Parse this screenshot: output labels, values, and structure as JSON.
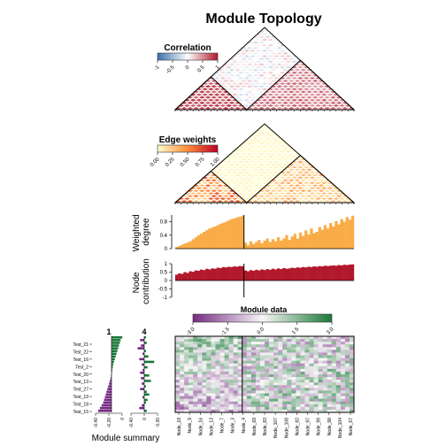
{
  "chart_data": {
    "type": "heatmap",
    "title": "Module Topology",
    "modules": [
      "1",
      "4"
    ],
    "correlation_panel": {
      "legend_title": "Correlation",
      "legend_ticks": [
        "-1",
        "-0.5",
        "0",
        "0.5",
        "1"
      ],
      "colors": [
        "#3b6fb0",
        "#ffffff",
        "#b2182b"
      ]
    },
    "edge_weights_panel": {
      "legend_title": "Edge weights",
      "legend_ticks": [
        "0.00",
        "0.25",
        "0.50",
        "0.75",
        "1.00"
      ],
      "colors": [
        "#ffffcc",
        "#fd8d3c",
        "#bd0026"
      ]
    },
    "weighted_degree": {
      "ylabel": "Weighted\ndegree",
      "ticks": [
        "0",
        "0.4",
        "0.8"
      ],
      "ylim": [
        0,
        1
      ],
      "color": "#f9ac47",
      "module1_values": [
        0.05,
        0.08,
        0.12,
        0.15,
        0.18,
        0.22,
        0.28,
        0.34,
        0.4,
        0.45,
        0.5,
        0.55,
        0.6,
        0.63,
        0.66,
        0.7,
        0.74,
        0.77,
        0.8,
        0.84,
        0.88,
        0.9,
        0.93,
        0.95,
        0.98
      ],
      "module4_values": [
        0.18,
        0.1,
        0.22,
        0.14,
        0.2,
        0.26,
        0.16,
        0.24,
        0.3,
        0.2,
        0.28,
        0.22,
        0.34,
        0.24,
        0.3,
        0.4,
        0.26,
        0.36,
        0.44,
        0.3,
        0.48,
        0.38,
        0.54,
        0.42,
        0.6,
        0.46,
        0.5,
        0.64,
        0.56,
        0.7,
        0.6,
        0.76,
        0.66,
        0.82,
        0.72,
        0.88,
        0.8,
        0.94,
        0.86,
        0.98
      ]
    },
    "node_contribution": {
      "ylabel": "Node\ncontribution",
      "ticks": [
        "-1",
        "-0.5",
        "0",
        "0.5",
        "1"
      ],
      "ylim": [
        -1,
        1
      ],
      "color": "#b2182b",
      "module1_values": [
        0.35,
        0.42,
        0.4,
        0.5,
        0.45,
        0.55,
        0.52,
        0.6,
        0.58,
        0.65,
        0.62,
        0.7,
        0.66,
        0.72,
        0.7,
        0.76,
        0.74,
        0.8,
        0.78,
        0.82,
        0.8,
        0.84,
        0.82,
        0.86,
        0.85
      ],
      "module4_values": [
        0.6,
        0.55,
        0.62,
        0.58,
        0.64,
        0.6,
        0.66,
        0.62,
        0.68,
        0.64,
        0.7,
        0.66,
        0.72,
        0.68,
        0.74,
        0.7,
        0.72,
        0.76,
        0.74,
        0.78,
        0.76,
        0.8,
        0.78,
        0.82,
        0.8,
        0.84,
        0.82,
        0.86,
        0.84,
        0.88,
        0.86,
        0.88,
        0.9,
        0.88,
        0.92,
        0.9,
        0.94,
        0.92,
        0.95,
        0.96
      ]
    },
    "module_data": {
      "legend_title": "Module data",
      "legend_ticks": [
        "-3.0",
        "-1.5",
        "0.0",
        "1.5",
        "3.0"
      ],
      "colors": [
        "#762a83",
        "#f7f7f7",
        "#1b7837"
      ],
      "x_labels": [
        "Node_18",
        "Node_9",
        "Node_16",
        "Node_13",
        "Node_7",
        "Node_3",
        "Node_4",
        "Node_69",
        "Node_83",
        "Node_107",
        "Node_108",
        "Node_82",
        "Node_97",
        "Node_99",
        "Node_98",
        "Node_104",
        "Node_67"
      ],
      "samples": [
        "Test_21",
        "Test_22",
        "Test_16",
        "Test_2",
        "Test_20",
        "Test_13",
        "Test_27",
        "Test_19",
        "Test_18",
        "Test_15"
      ]
    },
    "module_summary": {
      "title": "Module summary",
      "module_labels": [
        "1",
        "4"
      ],
      "module1_ticks": [
        "-0.40",
        "-0.20",
        "0"
      ],
      "module4_ticks": [
        "-0.40",
        "0",
        "0.30"
      ],
      "module1_values": [
        0.13,
        0.11,
        0.1,
        0.09,
        0.08,
        0.07,
        0.06,
        0.05,
        0.04,
        0.03,
        0.02,
        0.015,
        0.01,
        0.005,
        -0.005,
        -0.01,
        -0.02,
        -0.03,
        -0.04,
        -0.05,
        -0.06,
        -0.07,
        -0.08,
        -0.09,
        -0.1,
        -0.12,
        -0.14,
        -0.16
      ],
      "module4_values": [
        0.02,
        -0.05,
        0.03,
        -0.04,
        -0.08,
        0.02,
        -0.02,
        0.05,
        -0.06,
        0.12,
        -0.03,
        0.04,
        -0.02,
        -0.05,
        0.06,
        -0.04,
        0.08,
        -0.03,
        0.02,
        -0.05,
        0.03,
        0.06,
        -0.02,
        0.04,
        0.02,
        -0.03,
        -0.06,
        0.03
      ]
    }
  }
}
